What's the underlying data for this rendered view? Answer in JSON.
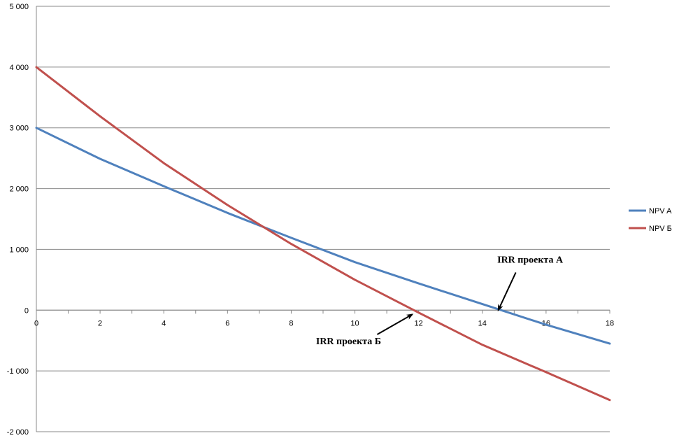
{
  "chart_data": {
    "type": "line",
    "x": [
      0,
      2,
      4,
      6,
      8,
      10,
      12,
      14,
      16,
      18
    ],
    "series": [
      {
        "name": "NPV A",
        "color": "#4f81bd",
        "values": [
          3000,
          2490,
          2040,
          1600,
          1190,
          790,
          440,
          100,
          -240,
          -550
        ]
      },
      {
        "name": "NPV Б",
        "color": "#c0504d",
        "values": [
          4000,
          3190,
          2420,
          1730,
          1090,
          500,
          -40,
          -570,
          -1020,
          -1480
        ]
      }
    ],
    "xlim": [
      0,
      18
    ],
    "ylim": [
      -2000,
      5000
    ],
    "xticks": [
      0,
      2,
      4,
      6,
      8,
      10,
      12,
      14,
      16,
      18
    ],
    "yticks": [
      -2000,
      -1000,
      0,
      1000,
      2000,
      3000,
      4000,
      5000
    ],
    "ytick_labels": [
      "-2 000",
      "-1 000",
      "0",
      "1 000",
      "2 000",
      "3 000",
      "4 000",
      "5 000"
    ],
    "grid": "horizontal",
    "legend_position": "right",
    "title": "",
    "xlabel": "",
    "ylabel": "",
    "annotations": [
      {
        "text": "IRR проекта А",
        "x": 14.5,
        "y": 0,
        "label_x": 15.5,
        "label_y": 780,
        "arrow_from_x": 15.05,
        "arrow_from_y": 620
      },
      {
        "text": "IRR проекта Б",
        "x": 11.8,
        "y": -70,
        "label_x": 9.8,
        "label_y": -560,
        "arrow_from_x": 10.7,
        "arrow_from_y": -400
      }
    ]
  }
}
